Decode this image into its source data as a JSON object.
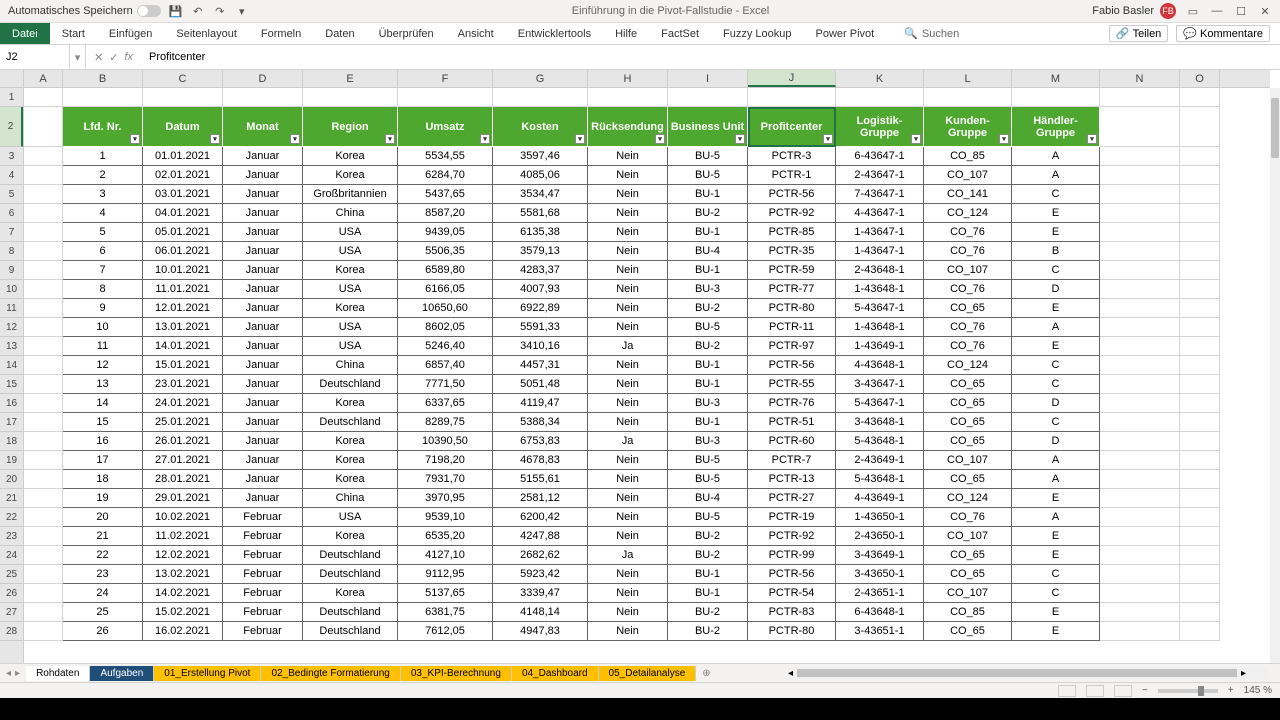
{
  "titlebar": {
    "autosave_label": "Automatisches Speichern",
    "doc_title": "Einführung in die Pivot-Fallstudie  -  Excel",
    "user_name": "Fabio Basler",
    "user_initials": "FB"
  },
  "ribbon": {
    "tabs": [
      "Datei",
      "Start",
      "Einfügen",
      "Seitenlayout",
      "Formeln",
      "Daten",
      "Überprüfen",
      "Ansicht",
      "Entwicklertools",
      "Hilfe",
      "FactSet",
      "Fuzzy Lookup",
      "Power Pivot"
    ],
    "active_index": 0,
    "search_placeholder": "Suchen",
    "share_label": "Teilen",
    "comments_label": "Kommentare"
  },
  "formula_bar": {
    "cell_ref": "J2",
    "formula": "Profitcenter"
  },
  "columns": {
    "letters": [
      "A",
      "B",
      "C",
      "D",
      "E",
      "F",
      "G",
      "H",
      "I",
      "J",
      "K",
      "L",
      "M",
      "N",
      "O"
    ],
    "widths": [
      39,
      80,
      80,
      80,
      95,
      95,
      95,
      80,
      80,
      88,
      88,
      88,
      88,
      80,
      40
    ],
    "selected_index": 9
  },
  "rows": {
    "numbers": [
      1,
      2,
      3,
      4,
      5,
      6,
      7,
      8,
      9,
      10,
      11,
      12,
      13,
      14,
      15,
      16,
      17,
      18,
      19,
      20,
      21,
      22,
      23,
      24,
      25,
      26,
      27,
      28
    ],
    "selected_index": 1,
    "heights": [
      19,
      40,
      19,
      19,
      19,
      19,
      19,
      19,
      19,
      19,
      19,
      19,
      19,
      19,
      19,
      19,
      19,
      19,
      19,
      19,
      19,
      19,
      19,
      19,
      19,
      19,
      19,
      19
    ]
  },
  "table": {
    "header_bg": "#4ea72e",
    "header_fg": "#ffffff",
    "headers": [
      "Lfd. Nr.",
      "Datum",
      "Monat",
      "Region",
      "Umsatz",
      "Kosten",
      "Rücksendung",
      "Business Unit",
      "Profitcenter",
      "Logistik-Gruppe",
      "Kunden-Gruppe",
      "Händler-Gruppe"
    ],
    "rows": [
      [
        "1",
        "01.01.2021",
        "Januar",
        "Korea",
        "5534,55",
        "3597,46",
        "Nein",
        "BU-5",
        "PCTR-3",
        "6-43647-1",
        "CO_85",
        "A"
      ],
      [
        "2",
        "02.01.2021",
        "Januar",
        "Korea",
        "6284,70",
        "4085,06",
        "Nein",
        "BU-5",
        "PCTR-1",
        "2-43647-1",
        "CO_107",
        "A"
      ],
      [
        "3",
        "03.01.2021",
        "Januar",
        "Großbritannien",
        "5437,65",
        "3534,47",
        "Nein",
        "BU-1",
        "PCTR-56",
        "7-43647-1",
        "CO_141",
        "C"
      ],
      [
        "4",
        "04.01.2021",
        "Januar",
        "China",
        "8587,20",
        "5581,68",
        "Nein",
        "BU-2",
        "PCTR-92",
        "4-43647-1",
        "CO_124",
        "E"
      ],
      [
        "5",
        "05.01.2021",
        "Januar",
        "USA",
        "9439,05",
        "6135,38",
        "Nein",
        "BU-1",
        "PCTR-85",
        "1-43647-1",
        "CO_76",
        "E"
      ],
      [
        "6",
        "06.01.2021",
        "Januar",
        "USA",
        "5506,35",
        "3579,13",
        "Nein",
        "BU-4",
        "PCTR-35",
        "1-43647-1",
        "CO_76",
        "B"
      ],
      [
        "7",
        "10.01.2021",
        "Januar",
        "Korea",
        "6589,80",
        "4283,37",
        "Nein",
        "BU-1",
        "PCTR-59",
        "2-43648-1",
        "CO_107",
        "C"
      ],
      [
        "8",
        "11.01.2021",
        "Januar",
        "USA",
        "6166,05",
        "4007,93",
        "Nein",
        "BU-3",
        "PCTR-77",
        "1-43648-1",
        "CO_76",
        "D"
      ],
      [
        "9",
        "12.01.2021",
        "Januar",
        "Korea",
        "10650,60",
        "6922,89",
        "Nein",
        "BU-2",
        "PCTR-80",
        "5-43647-1",
        "CO_65",
        "E"
      ],
      [
        "10",
        "13.01.2021",
        "Januar",
        "USA",
        "8602,05",
        "5591,33",
        "Nein",
        "BU-5",
        "PCTR-11",
        "1-43648-1",
        "CO_76",
        "A"
      ],
      [
        "11",
        "14.01.2021",
        "Januar",
        "USA",
        "5246,40",
        "3410,16",
        "Ja",
        "BU-2",
        "PCTR-97",
        "1-43649-1",
        "CO_76",
        "E"
      ],
      [
        "12",
        "15.01.2021",
        "Januar",
        "China",
        "6857,40",
        "4457,31",
        "Nein",
        "BU-1",
        "PCTR-56",
        "4-43648-1",
        "CO_124",
        "C"
      ],
      [
        "13",
        "23.01.2021",
        "Januar",
        "Deutschland",
        "7771,50",
        "5051,48",
        "Nein",
        "BU-1",
        "PCTR-55",
        "3-43647-1",
        "CO_65",
        "C"
      ],
      [
        "14",
        "24.01.2021",
        "Januar",
        "Korea",
        "6337,65",
        "4119,47",
        "Nein",
        "BU-3",
        "PCTR-76",
        "5-43647-1",
        "CO_65",
        "D"
      ],
      [
        "15",
        "25.01.2021",
        "Januar",
        "Deutschland",
        "8289,75",
        "5388,34",
        "Nein",
        "BU-1",
        "PCTR-51",
        "3-43648-1",
        "CO_65",
        "C"
      ],
      [
        "16",
        "26.01.2021",
        "Januar",
        "Korea",
        "10390,50",
        "6753,83",
        "Ja",
        "BU-3",
        "PCTR-60",
        "5-43648-1",
        "CO_65",
        "D"
      ],
      [
        "17",
        "27.01.2021",
        "Januar",
        "Korea",
        "7198,20",
        "4678,83",
        "Nein",
        "BU-5",
        "PCTR-7",
        "2-43649-1",
        "CO_107",
        "A"
      ],
      [
        "18",
        "28.01.2021",
        "Januar",
        "Korea",
        "7931,70",
        "5155,61",
        "Nein",
        "BU-5",
        "PCTR-13",
        "5-43648-1",
        "CO_65",
        "A"
      ],
      [
        "19",
        "29.01.2021",
        "Januar",
        "China",
        "3970,95",
        "2581,12",
        "Nein",
        "BU-4",
        "PCTR-27",
        "4-43649-1",
        "CO_124",
        "E"
      ],
      [
        "20",
        "10.02.2021",
        "Februar",
        "USA",
        "9539,10",
        "6200,42",
        "Nein",
        "BU-5",
        "PCTR-19",
        "1-43650-1",
        "CO_76",
        "A"
      ],
      [
        "21",
        "11.02.2021",
        "Februar",
        "Korea",
        "6535,20",
        "4247,88",
        "Nein",
        "BU-2",
        "PCTR-92",
        "2-43650-1",
        "CO_107",
        "E"
      ],
      [
        "22",
        "12.02.2021",
        "Februar",
        "Deutschland",
        "4127,10",
        "2682,62",
        "Ja",
        "BU-2",
        "PCTR-99",
        "3-43649-1",
        "CO_65",
        "E"
      ],
      [
        "23",
        "13.02.2021",
        "Februar",
        "Deutschland",
        "9112,95",
        "5923,42",
        "Nein",
        "BU-1",
        "PCTR-56",
        "3-43650-1",
        "CO_65",
        "C"
      ],
      [
        "24",
        "14.02.2021",
        "Februar",
        "Korea",
        "5137,65",
        "3339,47",
        "Nein",
        "BU-1",
        "PCTR-54",
        "2-43651-1",
        "CO_107",
        "C"
      ],
      [
        "25",
        "15.02.2021",
        "Februar",
        "Deutschland",
        "6381,75",
        "4148,14",
        "Nein",
        "BU-2",
        "PCTR-83",
        "6-43648-1",
        "CO_85",
        "E"
      ],
      [
        "26",
        "16.02.2021",
        "Februar",
        "Deutschland",
        "7612,05",
        "4947,83",
        "Nein",
        "BU-2",
        "PCTR-80",
        "3-43651-1",
        "CO_65",
        "E"
      ]
    ]
  },
  "sheets": {
    "tabs": [
      "Rohdaten",
      "Aufgaben",
      "01_Erstellung Pivot",
      "02_Bedingte Formatierung",
      "03_KPI-Berechnung",
      "04_Dashboard",
      "05_Detailanalyse"
    ],
    "active_index": 1,
    "yellow_start": 2
  },
  "statusbar": {
    "zoom": "145 %"
  }
}
